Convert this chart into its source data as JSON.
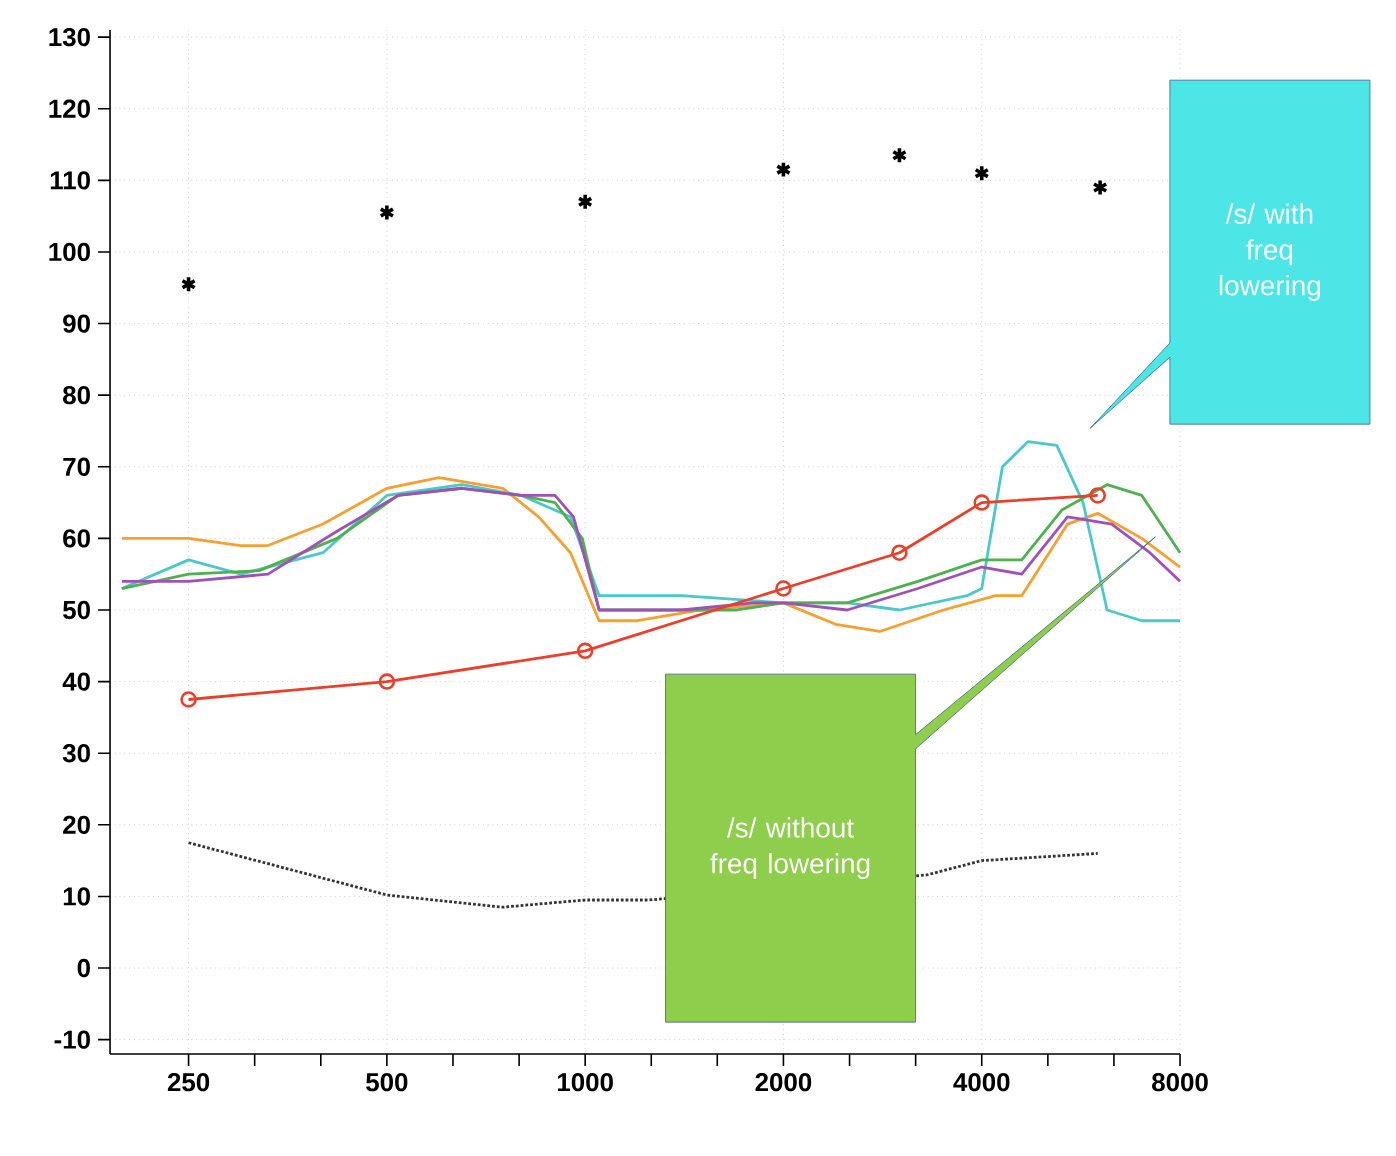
{
  "chart_data": {
    "type": "line",
    "log": "x",
    "grid": true,
    "xlim": [
      190,
      8000
    ],
    "ylim": [
      -12,
      131
    ],
    "xticks": [
      250,
      500,
      1000,
      2000,
      4000,
      8000,
      {
        "value": 315,
        "label": null
      },
      {
        "value": 397,
        "label": null
      },
      {
        "value": 630,
        "label": null
      },
      {
        "value": 794,
        "label": null
      },
      {
        "value": 1260,
        "label": null
      },
      {
        "value": 1587,
        "label": null
      },
      {
        "value": 2520,
        "label": null
      },
      {
        "value": 3175,
        "label": null
      },
      {
        "value": 5040,
        "label": null
      },
      {
        "value": 6350,
        "label": null
      }
    ],
    "yticks": [
      -10,
      0,
      10,
      20,
      30,
      40,
      50,
      60,
      70,
      80,
      90,
      100,
      110,
      120,
      130
    ],
    "annotations": [
      "/s/ with freq lowering",
      "/s/ without freq lowering"
    ],
    "series": [
      {
        "type": "scatter",
        "marker": "cross",
        "color": "#000000",
        "x": [
          250,
          500,
          1000,
          2000,
          3000,
          4000,
          6050
        ],
        "values": [
          95.5,
          105.5,
          107,
          111.5,
          113.5,
          111,
          109
        ]
      },
      {
        "color": "#f5a030",
        "x": [
          198,
          250,
          300,
          330,
          400,
          500,
          600,
          750,
          850,
          950,
          1050,
          1200,
          1500,
          2000,
          2400,
          2800,
          3500,
          4200,
          4600,
          5400,
          6000,
          7000,
          8000
        ],
        "values": [
          60,
          60,
          59,
          59,
          62,
          67,
          68.5,
          67,
          63,
          58,
          48.5,
          48.5,
          50,
          51,
          48,
          47,
          50,
          52,
          52,
          62,
          63.5,
          60,
          56
        ]
      },
      {
        "color": "#4cc8c8",
        "x": [
          198,
          250,
          300,
          400,
          500,
          650,
          800,
          950,
          1050,
          1400,
          2000,
          2500,
          3000,
          3800,
          4000,
          4300,
          4700,
          5200,
          5700,
          6200,
          7000,
          8000
        ],
        "values": [
          53,
          57,
          55,
          58,
          66,
          67.5,
          66,
          63,
          52,
          52,
          51,
          51,
          50,
          52,
          53,
          70,
          73.5,
          73,
          65,
          50,
          48.5,
          48.5
        ]
      },
      {
        "color": "#50b050",
        "x": [
          198,
          250,
          320,
          420,
          520,
          650,
          800,
          900,
          990,
          1050,
          1400,
          1700,
          2000,
          2500,
          3200,
          4000,
          4600,
          5300,
          6200,
          7000,
          8000
        ],
        "values": [
          53,
          55,
          55.5,
          60,
          66,
          67,
          66,
          65,
          60,
          50,
          50,
          50,
          51,
          51,
          54,
          57,
          57,
          64,
          67.5,
          66,
          58
        ]
      },
      {
        "color": "#a050b8",
        "x": [
          198,
          250,
          330,
          420,
          520,
          650,
          800,
          900,
          960,
          1050,
          1400,
          1800,
          2000,
          2500,
          3200,
          4000,
          4600,
          5400,
          6300,
          7200,
          8000
        ],
        "values": [
          54,
          54,
          55,
          61,
          66,
          67,
          66,
          66,
          63,
          50,
          50,
          51,
          51,
          50,
          53,
          56,
          55,
          63,
          62,
          58,
          54
        ]
      },
      {
        "color": "#e8402a",
        "marker": "circle",
        "x": [
          250,
          500,
          1000,
          2000,
          3000,
          4000,
          6000
        ],
        "values": [
          37.5,
          40,
          44.3,
          53,
          58,
          65,
          66
        ]
      },
      {
        "color": "#333333",
        "line_style": "dotted",
        "x": [
          250,
          500,
          750,
          1000,
          1250,
          3300,
          4000,
          6000
        ],
        "values": [
          17.5,
          10.2,
          8.5,
          9.5,
          9.5,
          13,
          15,
          16
        ]
      }
    ]
  }
}
